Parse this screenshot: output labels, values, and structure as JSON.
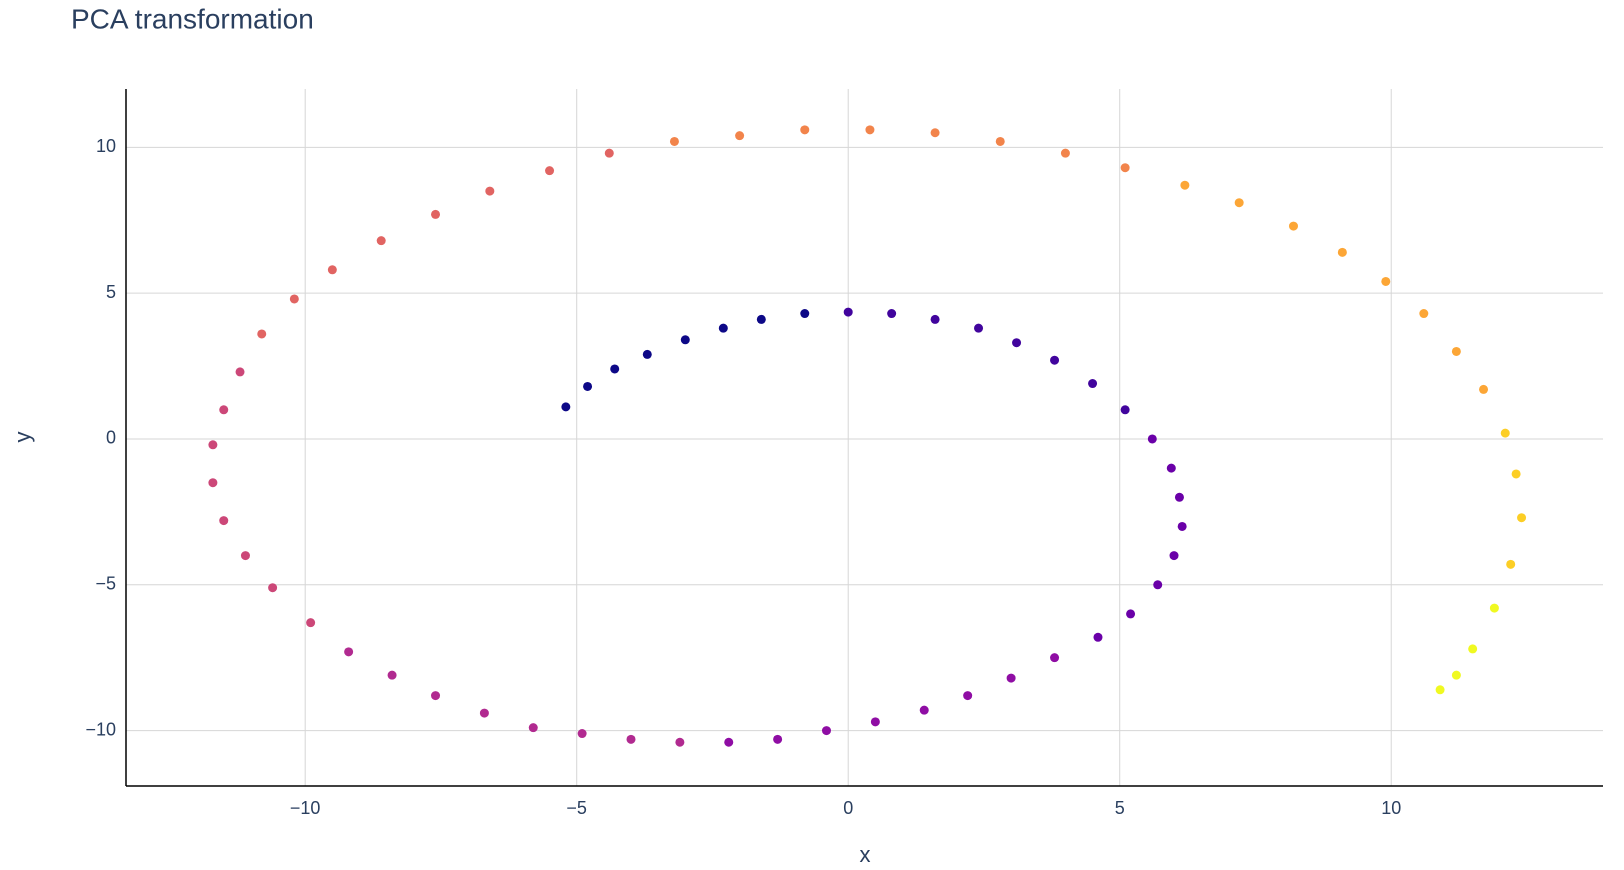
{
  "chart_data": {
    "type": "scatter",
    "title": "PCA transformation",
    "x_label": "x",
    "y_label": "y",
    "x": [
      -5.2,
      -4.8,
      -4.3,
      -3.7,
      -3.0,
      -2.3,
      -1.6,
      -0.8,
      0,
      0.8,
      1.6,
      2.4,
      3.1,
      3.8,
      4.5,
      5.1,
      5.6,
      5.95,
      6.1,
      6.15,
      6.0,
      5.7,
      5.2,
      4.6,
      3.8,
      3.0,
      2.2,
      1.4,
      0.5,
      -0.4,
      -1.3,
      -2.2,
      -3.1,
      -4.0,
      -4.9,
      -5.8,
      -6.7,
      -7.6,
      -8.4,
      -9.2,
      -9.9,
      -10.6,
      -11.1,
      -11.5,
      -11.7,
      -11.7,
      -11.5,
      -11.2,
      -10.8,
      -10.2,
      -9.5,
      -8.6,
      -7.6,
      -6.6,
      -5.5,
      -4.4,
      -3.2,
      -2.0,
      -0.8,
      0.4,
      1.6,
      2.8,
      4.0,
      5.1,
      6.2,
      7.2,
      8.2,
      9.1,
      9.9,
      10.6,
      11.2,
      11.7,
      12.1,
      12.3,
      12.4,
      12.2,
      11.9,
      11.5,
      11.2,
      10.9
    ],
    "values": [
      1.1,
      1.8,
      2.4,
      2.9,
      3.4,
      3.8,
      4.1,
      4.3,
      4.35,
      4.3,
      4.1,
      3.8,
      3.3,
      2.7,
      1.9,
      1.0,
      0,
      -1.0,
      -2.0,
      -3.0,
      -4.0,
      -5.0,
      -6.0,
      -6.8,
      -7.5,
      -8.2,
      -8.8,
      -9.3,
      -9.7,
      -10.0,
      -10.3,
      -10.4,
      -10.4,
      -10.3,
      -10.1,
      -9.9,
      -9.4,
      -8.8,
      -8.1,
      -7.3,
      -6.3,
      -5.1,
      -4.0,
      -2.8,
      -1.5,
      -0.2,
      1.0,
      2.3,
      3.6,
      4.8,
      5.8,
      6.8,
      7.7,
      8.5,
      9.2,
      9.8,
      10.2,
      10.4,
      10.6,
      10.6,
      10.5,
      10.2,
      9.8,
      9.3,
      8.7,
      8.1,
      7.3,
      6.4,
      5.4,
      4.3,
      3.0,
      1.7,
      0.2,
      -1.2,
      -2.7,
      -4.3,
      -5.8,
      -7.2,
      -8.1,
      -8.6
    ],
    "colors": [
      "#0d0887",
      "#0d0887",
      "#0d0887",
      "#0d0887",
      "#0d0887",
      "#0d0887",
      "#0d0887",
      "#0d0887",
      "#41049d",
      "#41049d",
      "#41049d",
      "#41049d",
      "#41049d",
      "#41049d",
      "#41049d",
      "#41049d",
      "#6a00a8",
      "#6a00a8",
      "#6a00a8",
      "#6a00a8",
      "#6a00a8",
      "#6a00a8",
      "#6a00a8",
      "#6a00a8",
      "#8f0da4",
      "#8f0da4",
      "#8f0da4",
      "#8f0da4",
      "#8f0da4",
      "#8f0da4",
      "#8f0da4",
      "#8f0da4",
      "#b12a90",
      "#b12a90",
      "#b12a90",
      "#b12a90",
      "#b12a90",
      "#b12a90",
      "#b12a90",
      "#b12a90",
      "#cc4778",
      "#cc4778",
      "#cc4778",
      "#cc4778",
      "#cc4778",
      "#cc4778",
      "#cc4778",
      "#cc4778",
      "#e16462",
      "#e16462",
      "#e16462",
      "#e16462",
      "#e16462",
      "#e16462",
      "#e16462",
      "#e16462",
      "#f2844b",
      "#f2844b",
      "#f2844b",
      "#f2844b",
      "#f2844b",
      "#f2844b",
      "#f2844b",
      "#f2844b",
      "#fca636",
      "#fca636",
      "#fca636",
      "#fca636",
      "#fca636",
      "#fca636",
      "#fca636",
      "#fca636",
      "#fcce25",
      "#fcce25",
      "#fcce25",
      "#fcce25",
      "#f0f921",
      "#f0f921",
      "#f0f921",
      "#f0f921"
    ],
    "xlim": [
      -13.3,
      13.9
    ],
    "ylim": [
      -11.9,
      12.0
    ],
    "xticks": [
      {
        "value": -10,
        "label": "−10"
      },
      {
        "value": -5,
        "label": "−5"
      },
      0,
      5,
      10
    ],
    "yticks": [
      {
        "value": -10,
        "label": "−10"
      },
      {
        "value": -5,
        "label": "−5"
      },
      0,
      5,
      10
    ],
    "grid": true
  }
}
